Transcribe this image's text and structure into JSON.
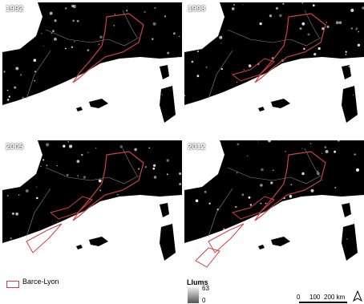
{
  "panels": [
    {
      "year": "1992",
      "spread": 0.0
    },
    {
      "year": "1998",
      "spread": 0.35
    },
    {
      "year": "2005",
      "spread": 0.7
    },
    {
      "year": "2012",
      "spread": 1.0
    }
  ],
  "legend": {
    "region_label": "Barce-Lyon",
    "region_color": "#d04040"
  },
  "luminosity_legend": {
    "title": "Llums",
    "max": "63",
    "min": "0"
  },
  "scale_bar": {
    "ticks": [
      "0",
      "100",
      "200 km"
    ]
  },
  "icons": {
    "north_arrow": "north-arrow-icon"
  }
}
